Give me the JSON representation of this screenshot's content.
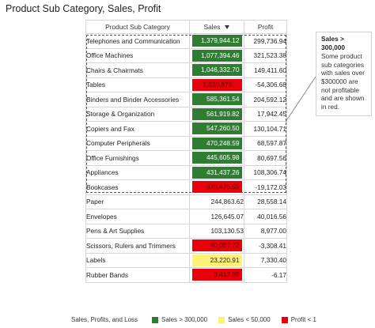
{
  "title": "Product Sub Category, Sales, Profit",
  "table": {
    "headers": {
      "category": "Product Sub Category",
      "sales": "Sales",
      "profit": "Profit"
    },
    "sort": {
      "column": "sales",
      "direction": "descending",
      "icon": "sort-descending-icon"
    },
    "rows": [
      {
        "category": "Telephones and Communication",
        "sales": "1,379,944.12",
        "profit": "299,736.94",
        "sales_color": "#2e7d32",
        "sales_text_color": "#ffffff"
      },
      {
        "category": "Office Machines",
        "sales": "1,077,394.46",
        "profit": "321,523.38",
        "sales_color": "#2e7d32",
        "sales_text_color": "#ffffff"
      },
      {
        "category": "Chairs & Chairmats",
        "sales": "1,046,332.70",
        "profit": "149,411.60",
        "sales_color": "#2e7d32",
        "sales_text_color": "#ffffff"
      },
      {
        "category": "Tables",
        "sales": "1,030,879....",
        "profit": "-54,306.68",
        "sales_color": "#e8000b",
        "sales_text_color": "#5a0000"
      },
      {
        "category": "Binders and Binder Accessories",
        "sales": "585,361.54",
        "profit": "204,592.12",
        "sales_color": "#2e7d32",
        "sales_text_color": "#ffffff"
      },
      {
        "category": "Storage & Organization",
        "sales": "561,919.82",
        "profit": "17,942.45",
        "sales_color": "#2e7d32",
        "sales_text_color": "#ffffff"
      },
      {
        "category": "Copiers and Fax",
        "sales": "547,260.50",
        "profit": "130,104.71",
        "sales_color": "#2e7d32",
        "sales_text_color": "#ffffff"
      },
      {
        "category": "Computer Peripherals",
        "sales": "470,248.59",
        "profit": "68,597.87",
        "sales_color": "#2e7d32",
        "sales_text_color": "#ffffff"
      },
      {
        "category": "Office Furnishings",
        "sales": "445,605.98",
        "profit": "80,697.56",
        "sales_color": "#2e7d32",
        "sales_text_color": "#ffffff"
      },
      {
        "category": "Appliances",
        "sales": "431,437.26",
        "profit": "108,306.74",
        "sales_color": "#2e7d32",
        "sales_text_color": "#ffffff"
      },
      {
        "category": "Bookcases",
        "sales": "370,475.59",
        "profit": "-19,172.03",
        "sales_color": "#e8000b",
        "sales_text_color": "#5a0000"
      },
      {
        "category": "Paper",
        "sales": "244,863.62",
        "profit": "28,558.14",
        "sales_color": "",
        "sales_text_color": "#222222"
      },
      {
        "category": "Envelopes",
        "sales": "126,645.07",
        "profit": "40,016.56",
        "sales_color": "",
        "sales_text_color": "#222222"
      },
      {
        "category": "Pens & Art Supplies",
        "sales": "103,130.53",
        "profit": "8,977.00",
        "sales_color": "",
        "sales_text_color": "#222222"
      },
      {
        "category": "Scissors, Rulers and Trimmers",
        "sales": "40,087.72",
        "profit": "-3,308.41",
        "sales_color": "#e8000b",
        "sales_text_color": "#5a0000"
      },
      {
        "category": "Labels",
        "sales": "23,220.91",
        "profit": "7,330.40",
        "sales_color": "#fff176",
        "sales_text_color": "#222222"
      },
      {
        "category": "Rubber Bands",
        "sales": "8,412.39",
        "profit": "-6.17",
        "sales_color": "#e8000b",
        "sales_text_color": "#5a0000"
      }
    ]
  },
  "callout": {
    "title": "Sales > 300,000",
    "body": "Some product sub categories with sales over $300000 are not profitable and are shown in red."
  },
  "legend": {
    "title": "Sales, Profits, and Loss",
    "items": [
      {
        "label": "Sales > 300,000",
        "color": "#2e7d32"
      },
      {
        "label": "Sales < 50,000",
        "color": "#fff176"
      },
      {
        "label": "Profit < 1",
        "color": "#e8000b"
      }
    ]
  }
}
